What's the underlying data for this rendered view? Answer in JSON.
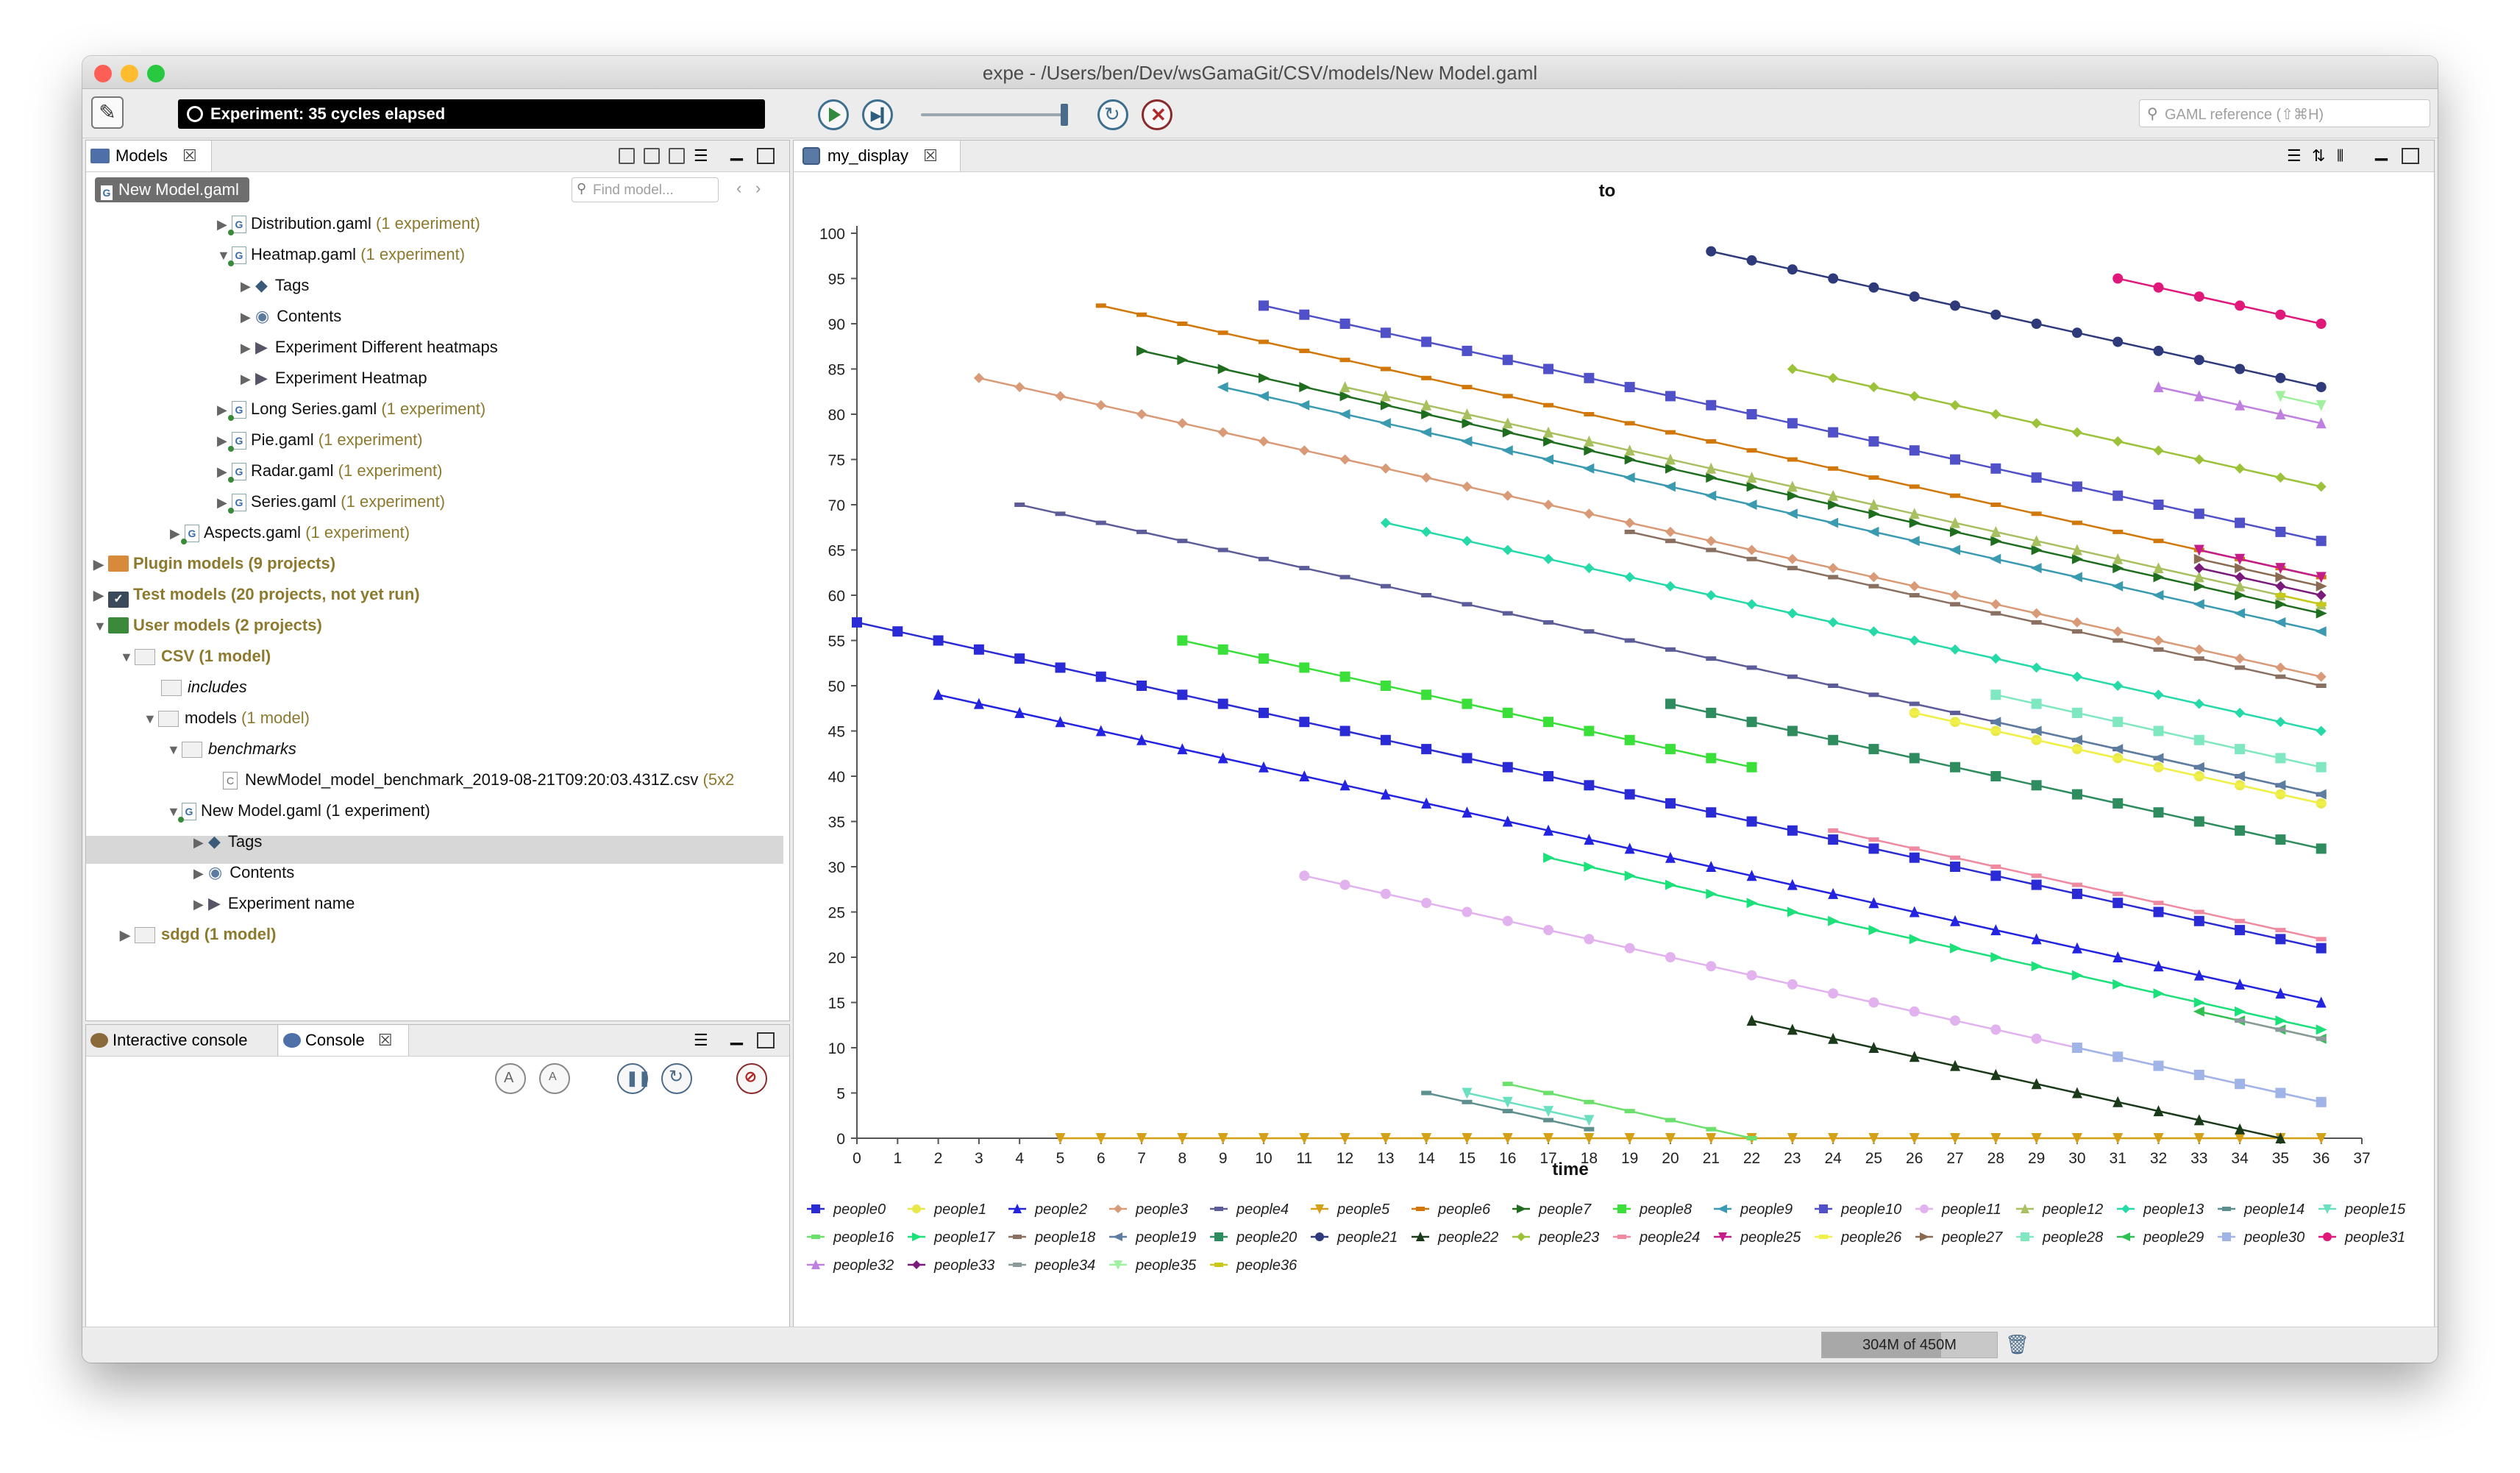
{
  "window": {
    "title": "expe - /Users/ben/Dev/wsGamaGit/CSV/models/New Model.gaml",
    "status": "Experiment: 35 cycles elapsed",
    "search_placeholder": "GAML reference (⇧⌘H)",
    "memory": "304M of 450M"
  },
  "models_panel": {
    "tab": "Models",
    "chip": "New Model.gaml",
    "find_placeholder": "Find model...",
    "rows": [
      {
        "label": "Distribution.gaml",
        "count": "(1 experiment)"
      },
      {
        "label": "Heatmap.gaml",
        "count": "(1 experiment)"
      },
      {
        "label": "Tags",
        "count": ""
      },
      {
        "label": "Contents",
        "count": ""
      },
      {
        "label": "Experiment Different heatmaps",
        "count": ""
      },
      {
        "label": "Experiment Heatmap",
        "count": ""
      },
      {
        "label": "Long Series.gaml",
        "count": "(1 experiment)"
      },
      {
        "label": "Pie.gaml",
        "count": "(1 experiment)"
      },
      {
        "label": "Radar.gaml",
        "count": "(1 experiment)"
      },
      {
        "label": "Series.gaml",
        "count": "(1 experiment)"
      },
      {
        "label": "Aspects.gaml",
        "count": "(1 experiment)"
      },
      {
        "label": "Plugin models",
        "count": "(9 projects)"
      },
      {
        "label": "Test models",
        "count": "(20 projects, not yet run)"
      },
      {
        "label": "User models",
        "count": "(2 projects)"
      },
      {
        "label": "CSV",
        "count": "(1 model)"
      },
      {
        "label": "includes",
        "count": ""
      },
      {
        "label": "models",
        "count": "(1 model)"
      },
      {
        "label": "benchmarks",
        "count": ""
      },
      {
        "label": "NewModel_model_benchmark_2019-08-21T09:20:03.431Z.csv",
        "count": "(5x2"
      },
      {
        "label": "New Model.gaml (1 experiment)",
        "count": ""
      },
      {
        "label": "Tags",
        "count": ""
      },
      {
        "label": "Contents",
        "count": ""
      },
      {
        "label": "Experiment name",
        "count": ""
      },
      {
        "label": "sdgd",
        "count": "(1 model)"
      }
    ]
  },
  "console_panel": {
    "tab_interactive": "Interactive console",
    "tab_console": "Console"
  },
  "display_panel": {
    "tab": "my_display"
  },
  "chart_data": {
    "type": "line",
    "title": "to",
    "xlabel": "time",
    "ylabel": "",
    "xlim": [
      0,
      37
    ],
    "ylim": [
      0,
      100
    ],
    "xticks": [
      0,
      1,
      2,
      3,
      4,
      5,
      6,
      7,
      8,
      9,
      10,
      11,
      12,
      13,
      14,
      15,
      16,
      17,
      18,
      19,
      20,
      21,
      22,
      23,
      24,
      25,
      26,
      27,
      28,
      29,
      30,
      31,
      32,
      33,
      34,
      35,
      36,
      37
    ],
    "yticks": [
      0,
      5,
      10,
      15,
      20,
      25,
      30,
      35,
      40,
      45,
      50,
      55,
      60,
      65,
      70,
      75,
      80,
      85,
      90,
      95,
      100
    ],
    "legend_position": "bottom",
    "series": [
      {
        "name": "people0",
        "color": "#2b2bd6",
        "marker": "square",
        "start": 0,
        "y0": 57,
        "end": 36
      },
      {
        "name": "people1",
        "color": "#e8e84a",
        "marker": "circle",
        "start": 26,
        "y0": 47,
        "end": 36
      },
      {
        "name": "people2",
        "color": "#2323e0",
        "marker": "triangle",
        "start": 2,
        "y0": 49,
        "end": 36
      },
      {
        "name": "people3",
        "color": "#d99a78",
        "marker": "diamond",
        "start": 3,
        "y0": 84,
        "end": 36
      },
      {
        "name": "people4",
        "color": "#5c5c99",
        "marker": "dash",
        "start": 4,
        "y0": 70,
        "end": 36
      },
      {
        "name": "people5",
        "color": "#d4a017",
        "marker": "down",
        "start": 5,
        "y0": 0,
        "end": 36
      },
      {
        "name": "people6",
        "color": "#d2780a",
        "marker": "dash",
        "start": 6,
        "y0": 92,
        "end": 36
      },
      {
        "name": "people7",
        "color": "#1f6e1f",
        "marker": "right",
        "start": 7,
        "y0": 87,
        "end": 36
      },
      {
        "name": "people8",
        "color": "#3adf3a",
        "marker": "square",
        "start": 8,
        "y0": 55,
        "end": 22
      },
      {
        "name": "people9",
        "color": "#3a9ab0",
        "marker": "left",
        "start": 9,
        "y0": 83,
        "end": 36
      },
      {
        "name": "people10",
        "color": "#5050c8",
        "marker": "square",
        "start": 10,
        "y0": 92,
        "end": 36
      },
      {
        "name": "people11",
        "color": "#e2b2ee",
        "marker": "circle",
        "start": 11,
        "y0": 29,
        "end": 36
      },
      {
        "name": "people12",
        "color": "#a8c060",
        "marker": "triangle",
        "start": 12,
        "y0": 83,
        "end": 36
      },
      {
        "name": "people13",
        "color": "#25d9a8",
        "marker": "diamond",
        "start": 13,
        "y0": 68,
        "end": 36
      },
      {
        "name": "people14",
        "color": "#5d8f8f",
        "marker": "dash",
        "start": 14,
        "y0": 5,
        "end": 18
      },
      {
        "name": "people15",
        "color": "#6ae0c0",
        "marker": "down",
        "start": 15,
        "y0": 5,
        "end": 18
      },
      {
        "name": "people16",
        "color": "#6ce06c",
        "marker": "dash",
        "start": 16,
        "y0": 6,
        "end": 22
      },
      {
        "name": "people17",
        "color": "#1ce07a",
        "marker": "right",
        "start": 17,
        "y0": 31,
        "end": 36
      },
      {
        "name": "people18",
        "color": "#8a7060",
        "marker": "dash",
        "start": 19,
        "y0": 67,
        "end": 36
      },
      {
        "name": "people19",
        "color": "#5c7ca0",
        "marker": "left",
        "start": 28,
        "y0": 46,
        "end": 36
      },
      {
        "name": "people20",
        "color": "#2e8c5e",
        "marker": "square",
        "start": 20,
        "y0": 48,
        "end": 36
      },
      {
        "name": "people21",
        "color": "#2e3a7a",
        "marker": "circle",
        "start": 21,
        "y0": 98,
        "end": 36
      },
      {
        "name": "people22",
        "color": "#1a3a1a",
        "marker": "triangle",
        "start": 22,
        "y0": 13,
        "end": 35
      },
      {
        "name": "people23",
        "color": "#9cc23a",
        "marker": "diamond",
        "start": 23,
        "y0": 85,
        "end": 36
      },
      {
        "name": "people24",
        "color": "#f08aa0",
        "marker": "dash",
        "start": 24,
        "y0": 34,
        "end": 36
      },
      {
        "name": "people25",
        "color": "#c41c8a",
        "marker": "down",
        "start": 33,
        "y0": 65,
        "end": 36
      },
      {
        "name": "people26",
        "color": "#f0f04a",
        "marker": "dash",
        "start": 26,
        "y0": 47,
        "end": 36
      },
      {
        "name": "people27",
        "color": "#8a6a50",
        "marker": "right",
        "start": 33,
        "y0": 64,
        "end": 36
      },
      {
        "name": "people28",
        "color": "#80e8c0",
        "marker": "square",
        "start": 28,
        "y0": 49,
        "end": 36
      },
      {
        "name": "people29",
        "color": "#30c050",
        "marker": "left",
        "start": 33,
        "y0": 14,
        "end": 36
      },
      {
        "name": "people30",
        "color": "#a0b4e8",
        "marker": "square",
        "start": 30,
        "y0": 10,
        "end": 36
      },
      {
        "name": "people31",
        "color": "#e0187a",
        "marker": "circle",
        "start": 31,
        "y0": 95,
        "end": 36
      },
      {
        "name": "people32",
        "color": "#c080e0",
        "marker": "triangle",
        "start": 32,
        "y0": 83,
        "end": 36
      },
      {
        "name": "people33",
        "color": "#7a1a7a",
        "marker": "diamond",
        "start": 33,
        "y0": 63,
        "end": 36
      },
      {
        "name": "people34",
        "color": "#8a9a9a",
        "marker": "dash",
        "start": 34,
        "y0": 13,
        "end": 36
      },
      {
        "name": "people35",
        "color": "#a0f0a0",
        "marker": "down",
        "start": 35,
        "y0": 82,
        "end": 36
      },
      {
        "name": "people36",
        "color": "#c8c81a",
        "marker": "dash",
        "start": 35,
        "y0": 60,
        "end": 36
      }
    ]
  }
}
